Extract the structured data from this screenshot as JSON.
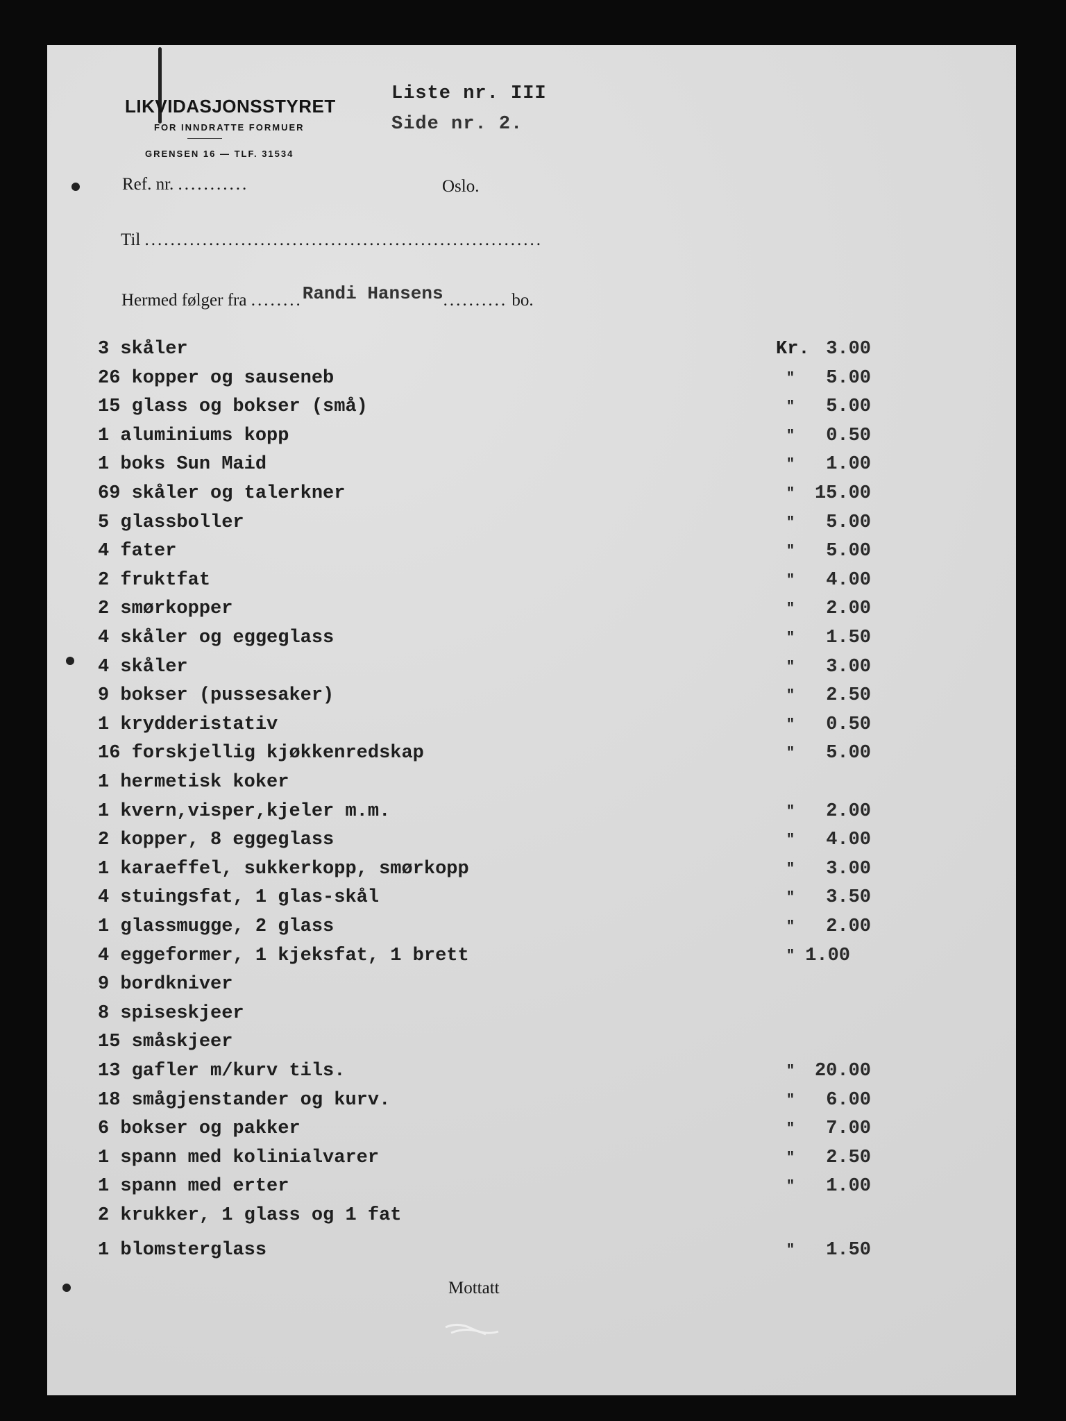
{
  "letterhead": {
    "organization": "LIKVIDASJONSSTYRET",
    "subtitle": "FOR INNDRATTE FORMUER",
    "address": "GRENSEN 16 — TLF. 31534"
  },
  "list_info": {
    "list_no": "Liste nr. III",
    "page_no": "Side nr. 2."
  },
  "form": {
    "ref_label": "Ref. nr.",
    "ref_dots": "...........",
    "city": "Oslo.",
    "to_label": "Til",
    "to_dots": "..............................................................",
    "from_label": "Hermed følger fra",
    "from_dots_before": "........",
    "from_value": "Randi Hansens",
    "from_dots_after": "..........",
    "from_suffix": "bo."
  },
  "currency": "Kr.",
  "ditto_mark": "\"",
  "items": [
    {
      "text": "3 skåler",
      "price": "3.00"
    },
    {
      "text": "26 kopper og sauseneb",
      "price": "5.00"
    },
    {
      "text": "15 glass og bokser (små)",
      "price": "5.00"
    },
    {
      "text": "1 aluminiums kopp",
      "price": "0.50"
    },
    {
      "text": "1 boks Sun Maid",
      "price": "1.00"
    },
    {
      "text": "69 skåler og talerkner",
      "price": "15.00"
    },
    {
      "text": "5 glassboller",
      "price": "5.00"
    },
    {
      "text": "4 fater",
      "price": "5.00"
    },
    {
      "text": "2 fruktfat",
      "price": "4.00"
    },
    {
      "text": "2 smørkopper",
      "price": "2.00"
    },
    {
      "text": "4 skåler og eggeglass",
      "price": "1.50"
    },
    {
      "text": "4 skåler",
      "price": "3.00"
    },
    {
      "text": "9 bokser (pussesaker)",
      "price": "2.50"
    },
    {
      "text": "1 krydderistativ",
      "price": "0.50"
    },
    {
      "text": "16 forskjellig kjøkkenredskap",
      "price": "5.00"
    },
    {
      "text": "1 hermetisk koker",
      "price": ""
    },
    {
      "text": "1 kvern,visper,kjeler m.m.",
      "price": "2.00"
    },
    {
      "text": "2 kopper, 8 eggeglass",
      "price": "4.00"
    },
    {
      "text": "1 karaeffel, sukkerkopp, smørkopp",
      "price": "3.00"
    },
    {
      "text": "4 stuingsfat, 1 glas-skål",
      "price": "3.50"
    },
    {
      "text": "1 glassmugge, 2 glass",
      "price": "2.00"
    },
    {
      "text": "4 eggeformer, 1 kjeksfat, 1 brett",
      "price": "1.00"
    },
    {
      "text": "9 bordkniver",
      "price": ""
    },
    {
      "text": "8 spiseskjeer",
      "price": ""
    },
    {
      "text": "15 småskjeer",
      "price": ""
    },
    {
      "text": "13 gafler      m/kurv  tils.",
      "price": "20.00"
    },
    {
      "text": "18 smågjenstander og kurv.",
      "price": "6.00"
    },
    {
      "text": "6 bokser og pakker",
      "price": "7.00"
    },
    {
      "text": "1 spann med kolinialvarer",
      "price": "2.50"
    },
    {
      "text": "1 spann med erter",
      "price": "1.00"
    },
    {
      "text": "2 krukker, 1 glass og 1 fat",
      "price": ""
    },
    {
      "text": "1 blomsterglass",
      "price": "1.50"
    }
  ],
  "footer": {
    "received_label": "Mottatt"
  }
}
